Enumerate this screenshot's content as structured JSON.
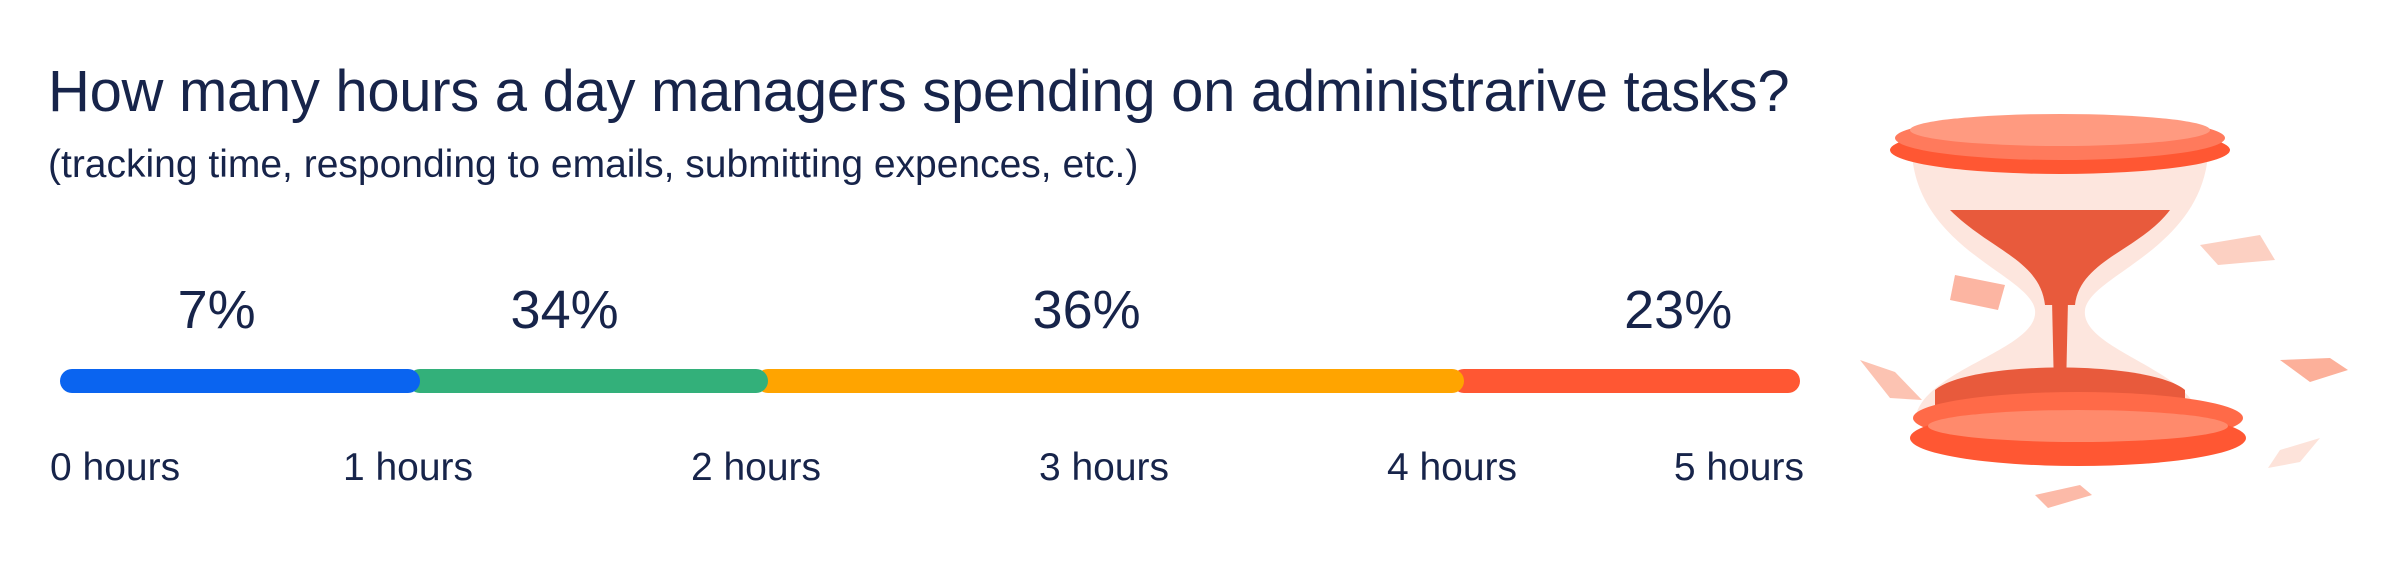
{
  "chart_data": {
    "type": "stacked-bar",
    "title": "How many hours a day managers spending on administrarive tasks?",
    "subtitle": "(tracking time, responding to emails, submitting expences, etc.)",
    "x_ticks": [
      "0 hours",
      "1 hours",
      "2 hours",
      "3 hours",
      "4 hours",
      "5 hours"
    ],
    "xlim": [
      0,
      5
    ],
    "segments": [
      {
        "start": 0,
        "end": 1,
        "value": 7,
        "label": "7%",
        "label_center": 0.45,
        "color": "#0a64f0"
      },
      {
        "start": 1,
        "end": 2,
        "value": 34,
        "label": "34%",
        "label_center": 1.45,
        "color": "#33b07a"
      },
      {
        "start": 2,
        "end": 4,
        "value": 36,
        "label": "36%",
        "label_center": 2.95,
        "color": "#ffa400"
      },
      {
        "start": 4,
        "end": 5,
        "value": 23,
        "label": "23%",
        "label_center": 4.65,
        "color": "#ff5733"
      }
    ],
    "grid": false,
    "legend": "none"
  },
  "illustration": {
    "icon": "hourglass-icon",
    "color": "#ff5733"
  }
}
